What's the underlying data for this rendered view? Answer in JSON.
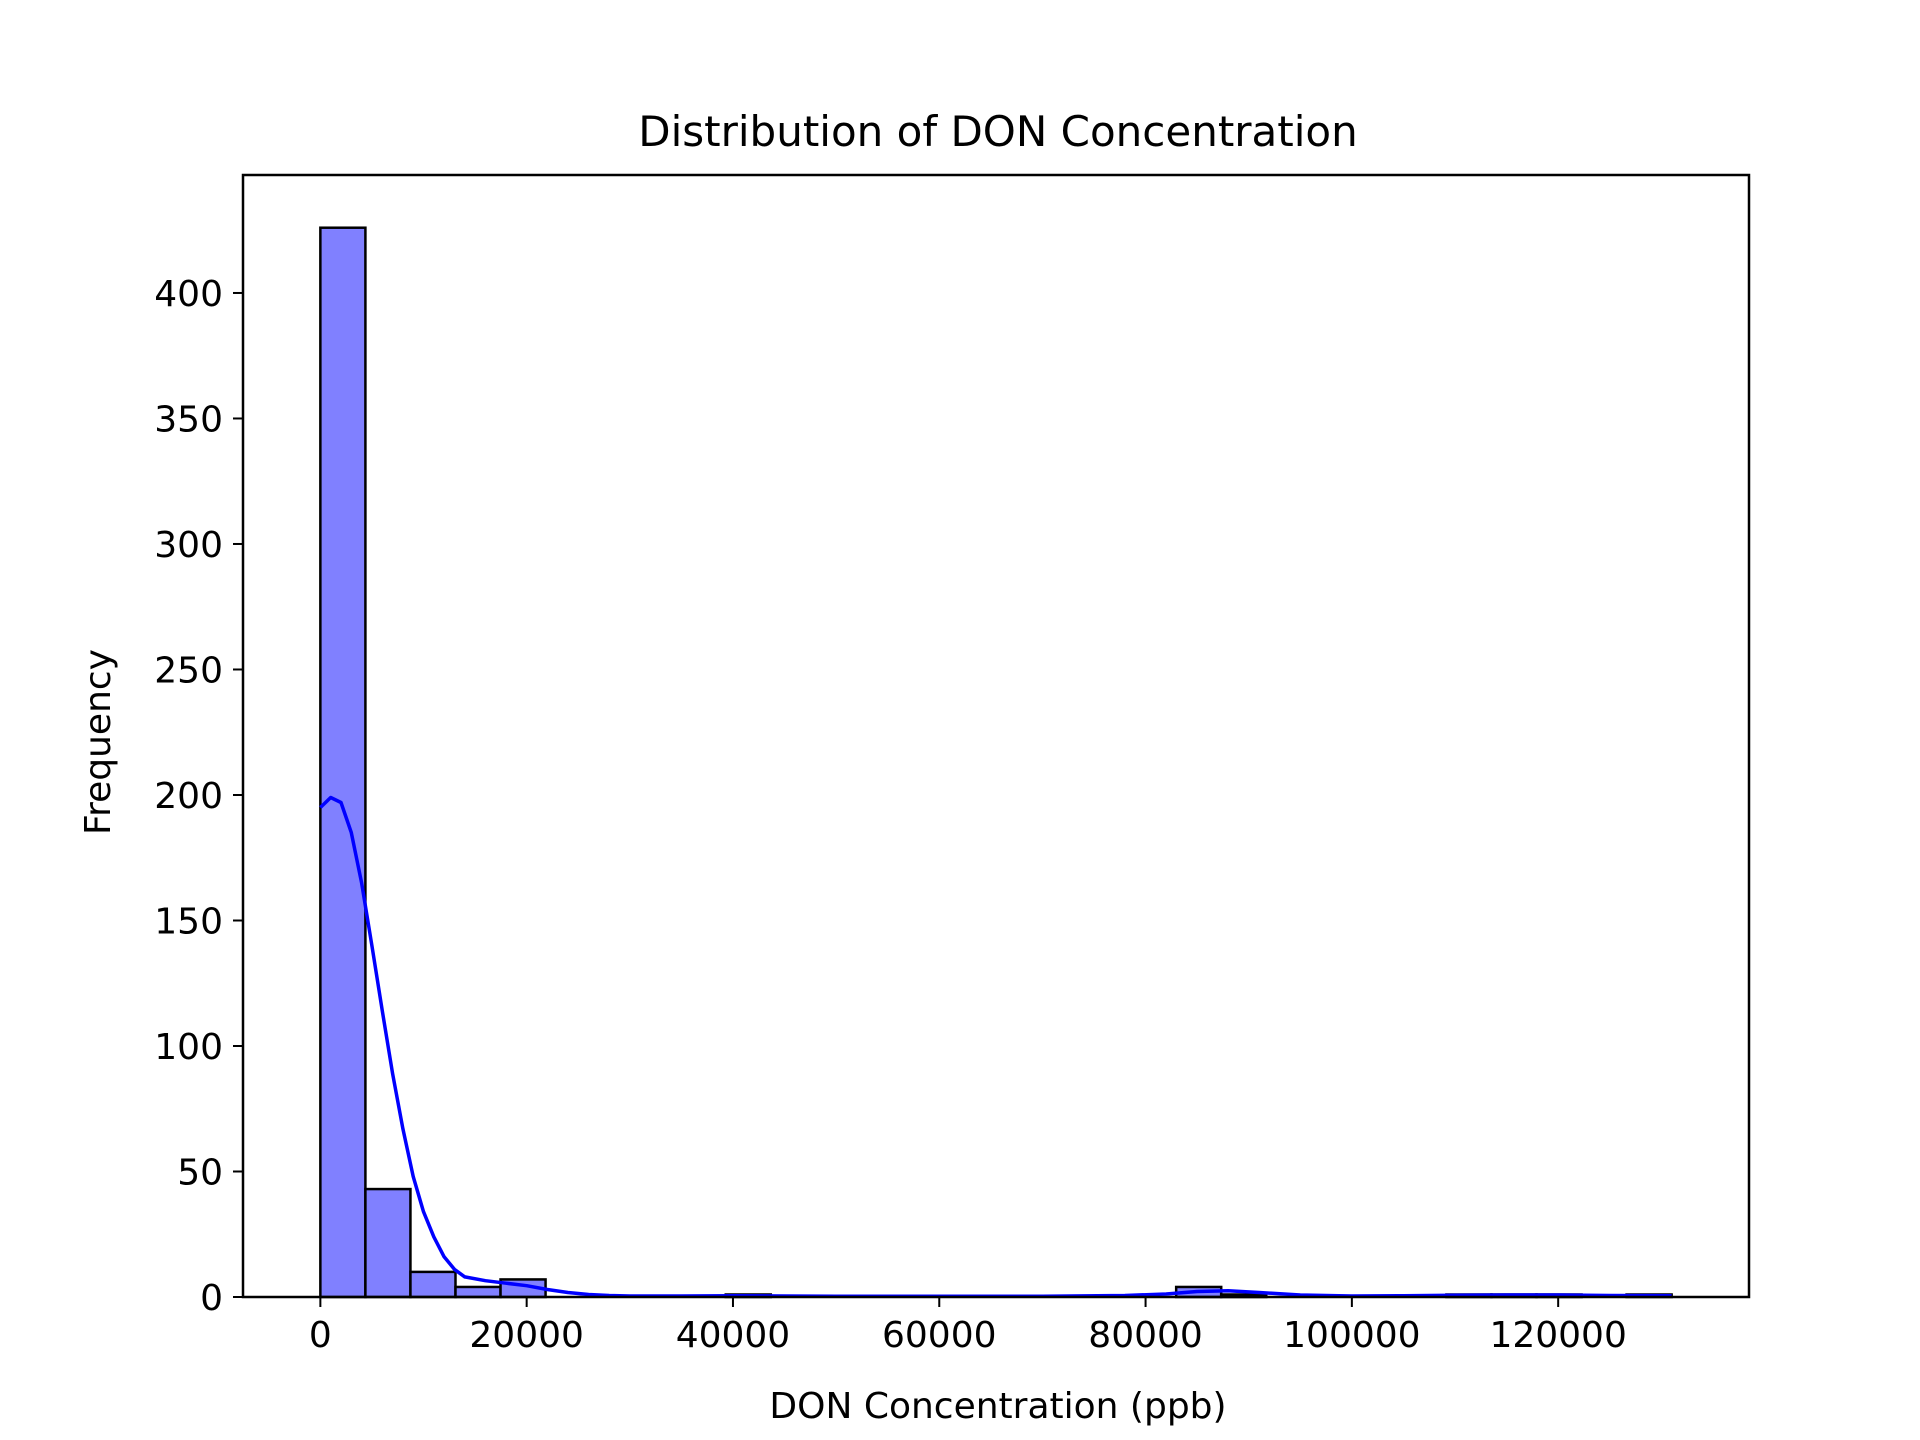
{
  "chart_data": {
    "type": "bar",
    "subtype": "histogram",
    "title": "Distribution of DON Concentration",
    "xlabel": "DON Concentration (ppb)",
    "ylabel": "Frequency",
    "xlim": [
      -7500,
      138500
    ],
    "ylim": [
      0,
      447
    ],
    "xticks": [
      0,
      20000,
      40000,
      60000,
      80000,
      100000,
      120000
    ],
    "xtick_labels": [
      "0",
      "20000",
      "40000",
      "60000",
      "80000",
      "100000",
      "120000"
    ],
    "yticks": [
      0,
      50,
      100,
      150,
      200,
      250,
      300,
      350,
      400
    ],
    "ytick_labels": [
      "0",
      "50",
      "100",
      "150",
      "200",
      "250",
      "300",
      "350",
      "400"
    ],
    "grid": false,
    "legend": "none",
    "bin_edges": [
      0,
      4367,
      8733,
      13100,
      17467,
      21833,
      26200,
      30567,
      34933,
      39300,
      43667,
      48033,
      52400,
      56767,
      61133,
      65500,
      69867,
      74233,
      78600,
      82967,
      87333,
      91700,
      96067,
      100433,
      104800,
      109167,
      113533,
      117900,
      122267,
      126633,
      131000
    ],
    "values": [
      426,
      43,
      10,
      4,
      7,
      0,
      0,
      0,
      0,
      1,
      0,
      0,
      0,
      0,
      0,
      0,
      0,
      0,
      0,
      4,
      1,
      0,
      0,
      0,
      0,
      1,
      1,
      1,
      0,
      1
    ],
    "bar_color": "#8080ff",
    "edge_color": "#000000",
    "kde": {
      "color": "#0000ff",
      "x": [
        0,
        1000,
        2000,
        3000,
        4000,
        5000,
        6000,
        7000,
        8000,
        9000,
        10000,
        11000,
        12000,
        13000,
        14000,
        16000,
        18000,
        20000,
        22000,
        24000,
        26000,
        28000,
        30000,
        35000,
        40000,
        45000,
        50000,
        60000,
        70000,
        78000,
        82000,
        85000,
        88000,
        91000,
        95000,
        100000,
        105000,
        110000,
        115000,
        120000,
        125000,
        131000
      ],
      "y": [
        195,
        199,
        197,
        185,
        165,
        140,
        114,
        89,
        67,
        48,
        34,
        24,
        16,
        11,
        8,
        6.5,
        5.5,
        4.5,
        3,
        1.8,
        1,
        0.6,
        0.4,
        0.4,
        0.5,
        0.4,
        0.3,
        0.3,
        0.3,
        0.6,
        1.2,
        2.2,
        2.5,
        1.8,
        0.8,
        0.4,
        0.5,
        0.7,
        0.8,
        0.8,
        0.6,
        0.5
      ]
    }
  }
}
